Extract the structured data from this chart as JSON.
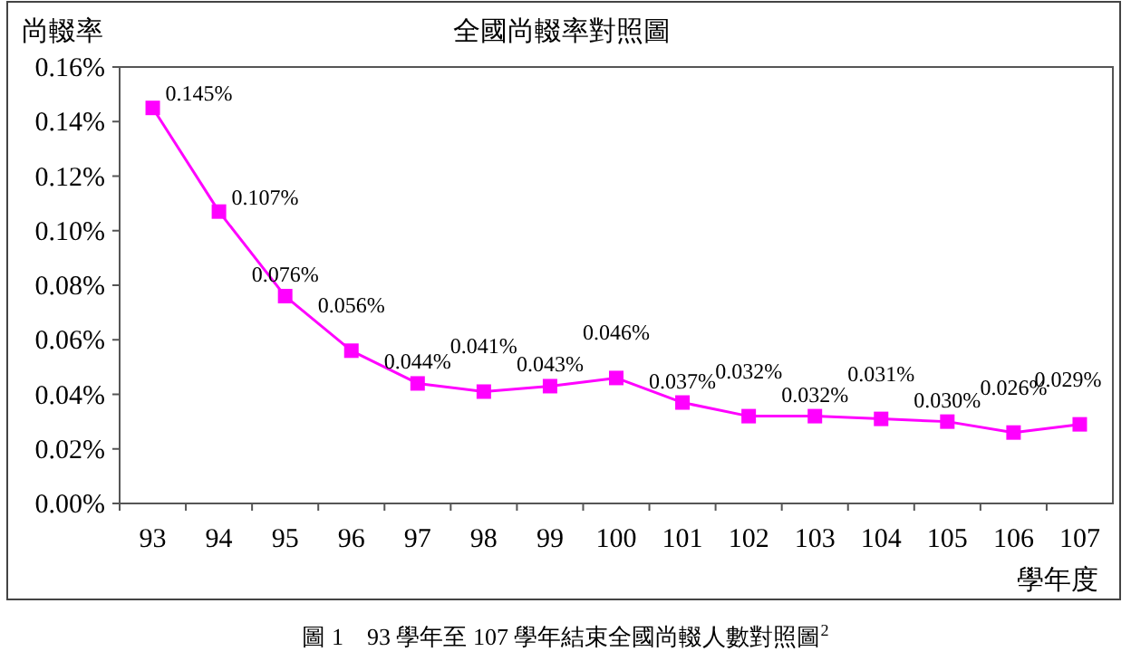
{
  "chart_data": {
    "type": "line",
    "title": "全國尚輟率對照圖",
    "ylabel": "尚輟率",
    "xlabel": "學年度",
    "categories": [
      "93",
      "94",
      "95",
      "96",
      "97",
      "98",
      "99",
      "100",
      "101",
      "102",
      "103",
      "104",
      "105",
      "106",
      "107"
    ],
    "series": [
      {
        "color": "#ff00ff",
        "values": [
          0.145,
          0.107,
          0.076,
          0.056,
          0.044,
          0.041,
          0.043,
          0.046,
          0.037,
          0.032,
          0.032,
          0.031,
          0.03,
          0.026,
          0.029
        ],
        "value_labels": [
          "0.145%",
          "0.107%",
          "0.076%",
          "0.056%",
          "0.044%",
          "0.041%",
          "0.043%",
          "0.046%",
          "0.037%",
          "0.032%",
          "0.032%",
          "0.031%",
          "0.030%",
          "0.026%",
          "0.029%"
        ]
      }
    ],
    "ylim": [
      0,
      0.16
    ],
    "yticks": [
      {
        "value": 0,
        "label": "0.00%"
      },
      {
        "value": 0.02,
        "label": "0.02%"
      },
      {
        "value": 0.04,
        "label": "0.04%"
      },
      {
        "value": 0.06,
        "label": "0.06%"
      },
      {
        "value": 0.08,
        "label": "0.08%"
      },
      {
        "value": 0.1,
        "label": "0.10%"
      },
      {
        "value": 0.12,
        "label": "0.12%"
      },
      {
        "value": 0.14,
        "label": "0.14%"
      },
      {
        "value": 0.16,
        "label": "0.16%"
      }
    ],
    "marker": "square",
    "line_style": "solid",
    "grid": false,
    "annotations": [
      "圖 1　93 學年至 107 學年結束全國尚輟人數對照圖$^{2}$"
    ]
  }
}
